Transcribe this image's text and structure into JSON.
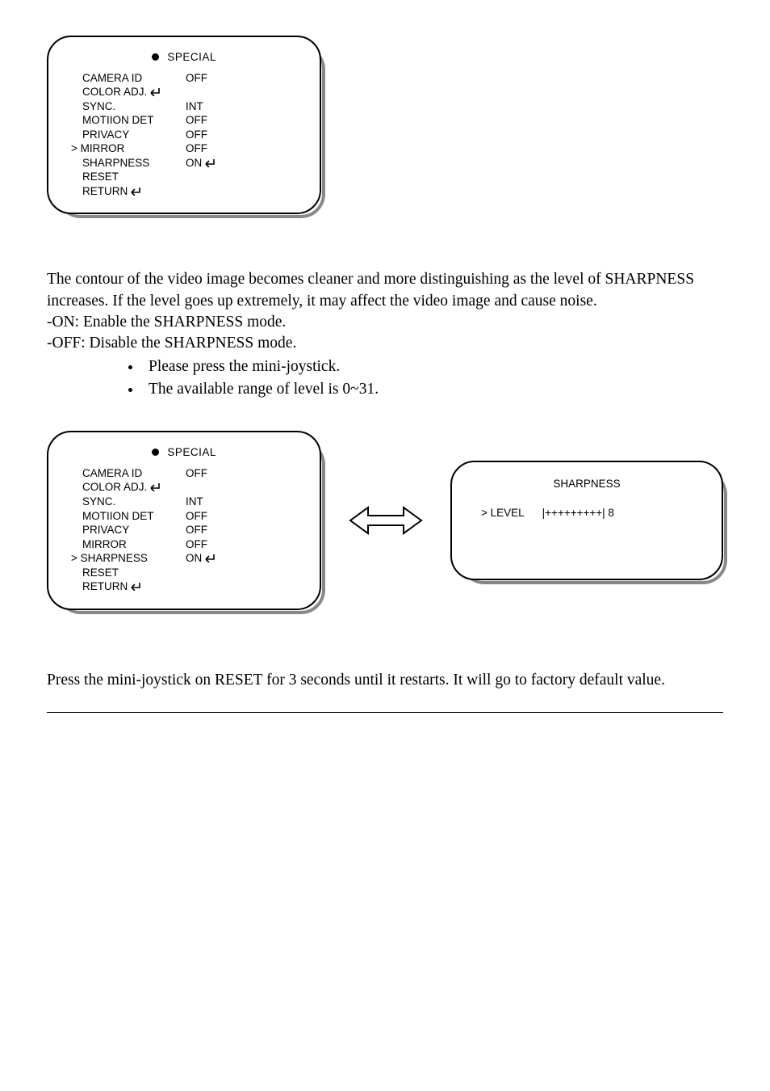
{
  "menu1": {
    "title": "SPECIAL",
    "rows": [
      {
        "label": "CAMERA ID",
        "value": "OFF",
        "cursor": false
      },
      {
        "label": "COLOR ADJ.",
        "value": "",
        "enter": true,
        "cursor": false
      },
      {
        "label": "SYNC.",
        "value": "INT",
        "cursor": false
      },
      {
        "label": "MOTIION DET",
        "value": "OFF",
        "cursor": false
      },
      {
        "label": "PRIVACY",
        "value": "OFF",
        "cursor": false
      },
      {
        "label": "MIRROR",
        "value": "OFF",
        "cursor": true
      },
      {
        "label": "SHARPNESS",
        "value": "ON",
        "valueEnter": true,
        "cursor": false
      },
      {
        "label": "RESET",
        "value": "",
        "cursor": false
      },
      {
        "label": "RETURN",
        "value": "",
        "enter": true,
        "cursor": false
      }
    ]
  },
  "paragraph1_line1": "The contour of the video image becomes cleaner and more distinguishing as the level of SHARPNESS",
  "paragraph1_line2": "increases. If the level goes up extremely, it may affect the video image and cause noise.",
  "on_line": "-ON: Enable the SHARPNESS mode.",
  "off_line": "-OFF: Disable the SHARPNESS mode.",
  "bullet1": "Please press the mini-joystick.",
  "bullet2": "The available range of level is 0~31.",
  "menu2": {
    "title": "SPECIAL",
    "rows": [
      {
        "label": "CAMERA ID",
        "value": "OFF",
        "cursor": false
      },
      {
        "label": "COLOR ADJ.",
        "value": "",
        "enter": true,
        "cursor": false
      },
      {
        "label": "SYNC.",
        "value": "INT",
        "cursor": false
      },
      {
        "label": "MOTIION DET",
        "value": "OFF",
        "cursor": false
      },
      {
        "label": "PRIVACY",
        "value": "OFF",
        "cursor": false
      },
      {
        "label": "MIRROR",
        "value": "OFF",
        "cursor": false
      },
      {
        "label": "SHARPNESS",
        "value": "ON",
        "valueEnter": true,
        "cursor": true
      },
      {
        "label": "RESET",
        "value": "",
        "cursor": false
      },
      {
        "label": "RETURN",
        "value": "",
        "enter": true,
        "cursor": false
      }
    ]
  },
  "sharpness_panel": {
    "title": "SHARPNESS",
    "row_text": "> LEVEL      |+++++++++| 8"
  },
  "reset_line": "Press the mini-joystick on RESET for 3 seconds until it restarts. It will go to factory default value."
}
